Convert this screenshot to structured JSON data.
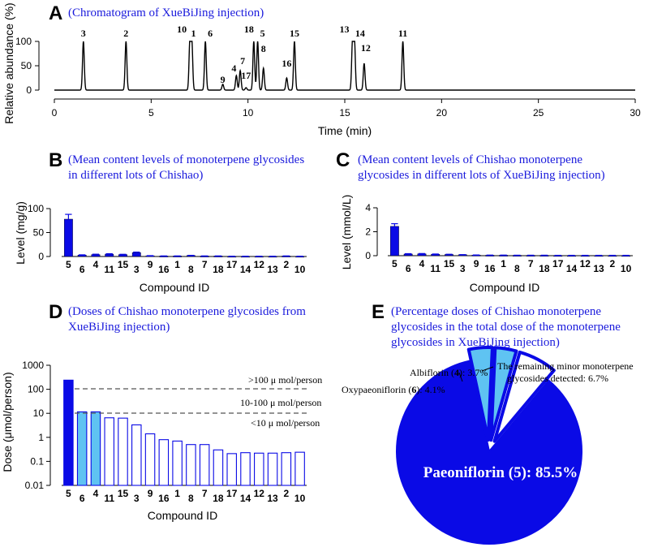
{
  "panels": {
    "a": {
      "letter": "A",
      "caption": "(Chromatogram of XueBiJing injection)"
    },
    "b": {
      "letter": "B",
      "caption_lines": [
        "(Mean content levels of monoterpene glycosides",
        "in different lots of Chishao)"
      ]
    },
    "c": {
      "letter": "C",
      "caption_lines": [
        "(Mean content levels of Chishao monoterpene",
        "glycosides in different lots of XueBiJing injection)"
      ]
    },
    "d": {
      "letter": "D",
      "caption_lines": [
        "(Doses of Chishao monoterpene glycosides from",
        "XueBiJing injection)"
      ]
    },
    "e": {
      "letter": "E",
      "caption_lines": [
        "(Percentage doses of  Chishao monoterpene",
        "glycosides in the total dose of the monoterpene",
        "glycosides in XueBiJing injection)"
      ]
    }
  },
  "colors": {
    "primary": "#0a0ae6",
    "light": "#5fc3f2",
    "caption": "#1a1adc"
  },
  "chart_data": [
    {
      "id": "A",
      "type": "line",
      "title": "(Chromatogram of XueBiJing injection)",
      "xlabel": "Time (min)",
      "ylabel": "Relative abundance (%)",
      "xlim": [
        0,
        30
      ],
      "ylim": [
        -10,
        110
      ],
      "xticks": [
        0,
        5,
        10,
        15,
        20,
        25,
        30
      ],
      "yticks": [
        0,
        50,
        100
      ],
      "peaks": [
        {
          "label": "3",
          "t": 1.5,
          "h": 100
        },
        {
          "label": "2",
          "t": 3.7,
          "h": 100
        },
        {
          "label": "10",
          "t": 7.0,
          "h": 100
        },
        {
          "label": "1",
          "t": 7.1,
          "h": 100
        },
        {
          "label": "6",
          "t": 7.8,
          "h": 100
        },
        {
          "label": "9",
          "t": 8.7,
          "h": 12
        },
        {
          "label": "4",
          "t": 9.4,
          "h": 30
        },
        {
          "label": "7",
          "t": 9.6,
          "h": 40
        },
        {
          "label": "17",
          "t": 9.9,
          "h": 5
        },
        {
          "label": "18",
          "t": 10.3,
          "h": 100
        },
        {
          "label": "5",
          "t": 10.5,
          "h": 100
        },
        {
          "label": "8",
          "t": 10.8,
          "h": 45
        },
        {
          "label": "16",
          "t": 12.0,
          "h": 25
        },
        {
          "label": "15",
          "t": 12.4,
          "h": 100
        },
        {
          "label": "13",
          "t": 15.4,
          "h": 100
        },
        {
          "label": "14",
          "t": 15.5,
          "h": 100
        },
        {
          "label": "12",
          "t": 16.0,
          "h": 55
        },
        {
          "label": "11",
          "t": 18.0,
          "h": 100
        }
      ]
    },
    {
      "id": "B",
      "type": "bar",
      "title": "(Mean content levels of monoterpene glycosides in different lots of Chishao)",
      "xlabel": "Compound ID",
      "ylabel": "Level (mg/g)",
      "ylim": [
        0,
        100
      ],
      "yticks": [
        0,
        50,
        100
      ],
      "categories": [
        "5",
        "6",
        "4",
        "11",
        "15",
        "3",
        "9",
        "16",
        "1",
        "8",
        "7",
        "18",
        "17",
        "14",
        "12",
        "13",
        "2",
        "10"
      ],
      "values": [
        78,
        3,
        4,
        5,
        4,
        8,
        1.5,
        1,
        1,
        2,
        1,
        1,
        0.5,
        0.5,
        0.5,
        0.5,
        1,
        0.5
      ],
      "errors": [
        10,
        0.5,
        0.8,
        0.8,
        0.6,
        1.2,
        0.3,
        0.2,
        0.2,
        0.4,
        0.2,
        0.2,
        0.1,
        0.1,
        0.1,
        0.1,
        0.2,
        0.1
      ]
    },
    {
      "id": "C",
      "type": "bar",
      "title": "(Mean content levels of Chishao monoterpene glycosides in different lots of XueBiJing injection)",
      "xlabel": "Compound ID",
      "ylabel": "Level (mmol/L)",
      "ylim": [
        0,
        4
      ],
      "yticks": [
        0,
        2,
        4
      ],
      "categories": [
        "5",
        "6",
        "4",
        "11",
        "15",
        "3",
        "9",
        "16",
        "1",
        "8",
        "7",
        "18",
        "17",
        "14",
        "12",
        "13",
        "2",
        "10"
      ],
      "values": [
        2.45,
        0.14,
        0.15,
        0.12,
        0.1,
        0.08,
        0.05,
        0.04,
        0.04,
        0.03,
        0.03,
        0.03,
        0.02,
        0.02,
        0.02,
        0.02,
        0.02,
        0.02
      ],
      "errors": [
        0.22,
        0.03,
        0.03,
        0.02,
        0.02,
        0.01,
        0.01,
        0.01,
        0.01,
        0.01,
        0.01,
        0.01,
        0.01,
        0.01,
        0.01,
        0.01,
        0.01,
        0.01
      ]
    },
    {
      "id": "D",
      "type": "bar",
      "title": "(Doses of Chishao monoterpene glycosides from XueBiJing injection)",
      "xlabel": "Compound ID",
      "ylabel": "Dose (μmol/person)",
      "yscale": "log",
      "ylim": [
        0.01,
        1000
      ],
      "yticks": [
        0.01,
        0.1,
        1,
        10,
        100,
        1000
      ],
      "ytick_labels": [
        "0.01",
        "0.1",
        "1",
        "10",
        "100",
        "1000"
      ],
      "categories": [
        "5",
        "6",
        "4",
        "11",
        "15",
        "3",
        "9",
        "16",
        "1",
        "8",
        "7",
        "18",
        "17",
        "14",
        "12",
        "13",
        "2",
        "10"
      ],
      "values": [
        240,
        11.5,
        11.5,
        6.5,
        6.3,
        3.3,
        1.4,
        0.8,
        0.7,
        0.5,
        0.5,
        0.3,
        0.21,
        0.23,
        0.22,
        0.22,
        0.23,
        0.24
      ],
      "fill_classes": [
        "primary",
        "light",
        "light",
        "none",
        "none",
        "none",
        "none",
        "none",
        "none",
        "none",
        "none",
        "none",
        "none",
        "none",
        "none",
        "none",
        "none",
        "none"
      ],
      "thresholds": [
        100,
        10
      ],
      "band_labels": [
        ">100  μ mol/person",
        "10-100  μ mol/person",
        "<10  μ mol/person"
      ]
    },
    {
      "id": "E",
      "type": "pie",
      "title": "(Percentage doses of Chishao monoterpene glycosides in the total dose of the monoterpene glycosides in XueBiJing injection)",
      "slices": [
        {
          "name": "Paeoniflorin (5)",
          "value": 85.5,
          "label": "Paeoniflorin (5): 85.5%",
          "color": "primary"
        },
        {
          "name": "Oxypaeoniflorin (6)",
          "value": 4.1,
          "label_name": "Oxypaeoniflorin (",
          "label_id": "6",
          "label_tail": "): 4.1%",
          "color": "light",
          "exploded": true
        },
        {
          "name": "Albiflorin (4)",
          "value": 3.7,
          "label_name": "Albiflorin (",
          "label_id": "4",
          "label_tail": "): 3.7%",
          "color": "light",
          "exploded": true
        },
        {
          "name": "Remaining minor",
          "value": 6.7,
          "label_lines": [
            "The remaining minor monoterpene",
            "glycosides detected: 6.7%"
          ],
          "color": "white",
          "exploded": true
        }
      ]
    }
  ]
}
